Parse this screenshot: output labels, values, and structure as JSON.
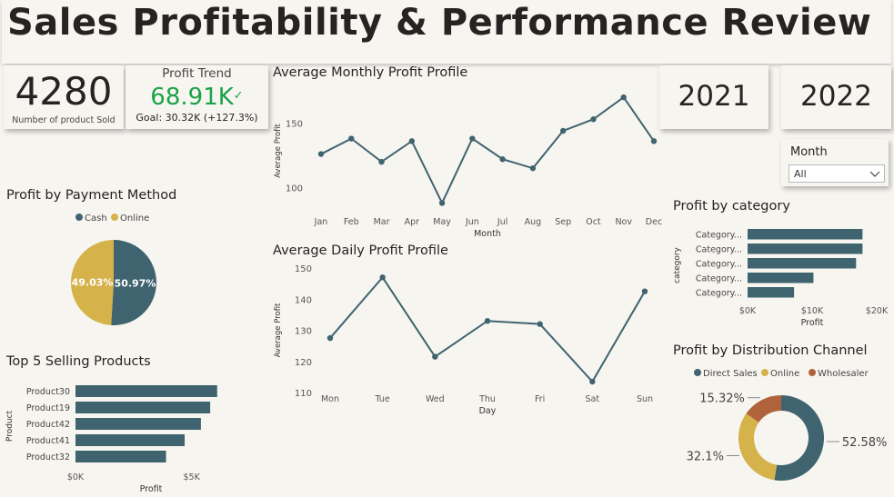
{
  "page": {
    "title": "Sales Profitability & Performance Review"
  },
  "kpi": {
    "count_value": "4280",
    "count_label": "Number of product Sold",
    "trend_title": "Profit Trend",
    "trend_value": "68.91K",
    "trend_goal": "Goal: 30.32K (+127.3%)"
  },
  "year_buttons": [
    "2021",
    "2022"
  ],
  "month_slicer": {
    "label": "Month",
    "value": "All"
  },
  "colors": {
    "teal": "#3f6470",
    "gold": "#d6b24a",
    "rust": "#b0633a",
    "green": "#1aa346"
  },
  "chart_data": [
    {
      "id": "monthly",
      "type": "line",
      "title": "Average Monthly Profit Profile",
      "xlabel": "Month",
      "ylabel": "Average Profit",
      "categories": [
        "Jan",
        "Feb",
        "Mar",
        "Apr",
        "May",
        "Jun",
        "Jul",
        "Aug",
        "Sep",
        "Oct",
        "Nov",
        "Dec"
      ],
      "values": [
        126,
        138,
        120,
        136,
        88,
        138,
        122,
        115,
        144,
        153,
        170,
        136
      ],
      "ylim": [
        82,
        175
      ],
      "yticks": [
        "100",
        "150"
      ],
      "ytick_values": [
        100,
        150
      ]
    },
    {
      "id": "daily",
      "type": "line",
      "title": "Average Daily Profit Profile",
      "xlabel": "Day",
      "ylabel": "Average Profit",
      "categories": [
        "Mon",
        "Tue",
        "Wed",
        "Thu",
        "Fri",
        "Sat",
        "Sun"
      ],
      "values": [
        127.5,
        147,
        121.5,
        133,
        132,
        113.5,
        142.5
      ],
      "ylim": [
        110,
        150
      ],
      "yticks": [
        "110",
        "120",
        "130",
        "140",
        "150"
      ],
      "ytick_values": [
        110,
        120,
        130,
        140,
        150
      ]
    },
    {
      "id": "payment",
      "type": "pie",
      "title": "Profit by Payment Method",
      "categories": [
        "Cash",
        "Online"
      ],
      "values": [
        50.97,
        49.03
      ],
      "labels": [
        "50.97%",
        "49.03%"
      ],
      "legend": "top"
    },
    {
      "id": "top5",
      "type": "bar",
      "orientation": "horizontal",
      "title": "Top 5 Selling Products",
      "ylabel": "Product",
      "xlabel": "Profit",
      "categories": [
        "Product30",
        "Product19",
        "Product42",
        "Product41",
        "Product32"
      ],
      "values": [
        6100,
        5800,
        5400,
        4700,
        3900
      ],
      "xlim": [
        0,
        6500
      ],
      "xticks": [
        "$0K",
        "$5K"
      ],
      "xtick_values": [
        0,
        5000
      ]
    },
    {
      "id": "category",
      "type": "bar",
      "orientation": "horizontal",
      "title": "Profit by category",
      "ylabel": "category",
      "xlabel": "Profit",
      "categories": [
        "Category...",
        "Category...",
        "Category...",
        "Category...",
        "Category..."
      ],
      "values": [
        17800,
        17800,
        16800,
        10200,
        7200
      ],
      "xlim": [
        0,
        20000
      ],
      "xticks": [
        "$0K",
        "$10K",
        "$20K"
      ],
      "xtick_values": [
        0,
        10000,
        20000
      ]
    },
    {
      "id": "channel",
      "type": "pie",
      "variant": "donut",
      "title": "Profit by Distribution Channel",
      "categories": [
        "Direct Sales",
        "Online",
        "Wholesaler"
      ],
      "values": [
        52.58,
        32.1,
        15.32
      ],
      "labels": [
        "52.58%",
        "32.1%",
        "15.32%"
      ],
      "legend": "top"
    }
  ]
}
